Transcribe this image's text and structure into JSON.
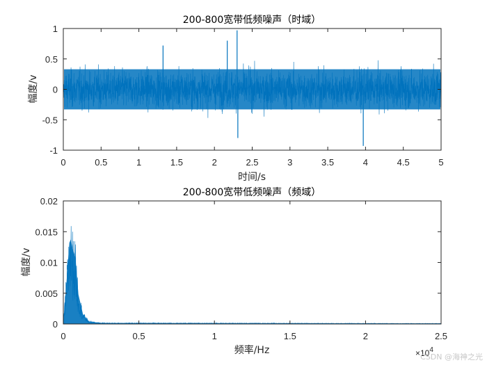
{
  "chart_data": [
    {
      "type": "line",
      "title": "200-800宽带低频噪声（时域）",
      "xlabel": "时间/s",
      "ylabel": "幅度/v",
      "xlim": [
        0,
        5
      ],
      "ylim": [
        -1,
        1
      ],
      "xticks": [
        "0",
        "0.5",
        "1",
        "1.5",
        "2",
        "2.5",
        "3",
        "3.5",
        "4",
        "4.5",
        "5"
      ],
      "yticks": [
        "-1",
        "-0.5",
        "0",
        "0.5",
        "1"
      ],
      "grid": false,
      "color": "#0072BD",
      "series": [
        {
          "description": "dense broadband noise, roughly symmetric about 0",
          "x_range": [
            0,
            5
          ],
          "typical_amplitude": 0.5,
          "peaks": [
            {
              "x": 2.3,
              "y": 0.97
            },
            {
              "x": 2.17,
              "y": 0.8
            },
            {
              "x": 2.31,
              "y": -0.8
            },
            {
              "x": 3.97,
              "y": -0.93
            },
            {
              "x": 1.32,
              "y": 0.72
            }
          ]
        }
      ]
    },
    {
      "type": "line",
      "title": "200-800宽带低频噪声（频域）",
      "xlabel": "频率/Hz",
      "ylabel": "幅度/v",
      "xlim": [
        0,
        25000
      ],
      "ylim": [
        0,
        0.02
      ],
      "xticks": [
        "0",
        "0.5",
        "1",
        "1.5",
        "2",
        "2.5"
      ],
      "x_exponent_label": "×10",
      "x_exponent_power": "4",
      "yticks": [
        "0",
        "0.005",
        "0.01",
        "0.015",
        "0.02"
      ],
      "grid": false,
      "color": "#0072BD",
      "series": [
        {
          "description": "spectrum concentrated at low frequency, decaying to ~0 above ~1500 Hz",
          "points": [
            {
              "x": 0,
              "y": 0.0
            },
            {
              "x": 200,
              "y": 0.008
            },
            {
              "x": 400,
              "y": 0.0165
            },
            {
              "x": 500,
              "y": 0.0172
            },
            {
              "x": 600,
              "y": 0.0155
            },
            {
              "x": 800,
              "y": 0.0135
            },
            {
              "x": 1000,
              "y": 0.006
            },
            {
              "x": 1300,
              "y": 0.002
            },
            {
              "x": 1700,
              "y": 0.0005
            },
            {
              "x": 2500,
              "y": 0.0002
            },
            {
              "x": 25000,
              "y": 0.0001
            }
          ]
        }
      ]
    }
  ],
  "watermark": "CSDN @海神之光"
}
